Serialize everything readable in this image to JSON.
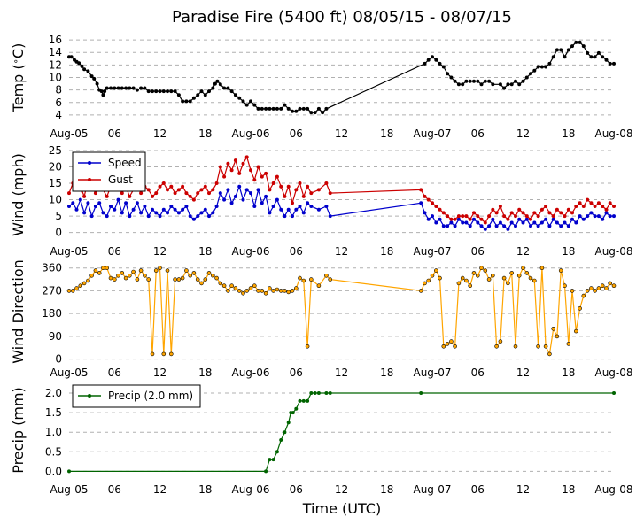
{
  "title": "Paradise Fire (5400 ft) 08/05/15 - 08/07/15",
  "xlabel": "Time (UTC)",
  "x_tick_labels": [
    "Aug-05",
    "06",
    "12",
    "18",
    "Aug-06",
    "06",
    "12",
    "18",
    "Aug-07",
    "06",
    "12",
    "18",
    "Aug-08"
  ],
  "x_range_hours": [
    0,
    72
  ],
  "chart_data": [
    {
      "type": "line",
      "id": "temp",
      "ylabel": "Temp (°C)",
      "ylabel_display": "Temp ($^\\circ$C)",
      "ylim": [
        3,
        17
      ],
      "yticks": [
        4,
        6,
        8,
        10,
        12,
        14,
        16
      ],
      "color": "#000000",
      "series": [
        {
          "name": "Temp",
          "x": [
            0,
            0.3,
            0.7,
            1,
            1.3,
            1.7,
            2,
            2.5,
            3,
            3.3,
            3.7,
            4,
            4.3,
            4.5,
            4.7,
            5,
            5.5,
            6,
            6.5,
            7,
            7.5,
            8,
            8.5,
            9,
            9.5,
            10,
            10.5,
            11,
            11.5,
            12,
            12.5,
            13,
            13.5,
            14,
            14.5,
            15,
            15.5,
            16,
            16.5,
            17,
            17.5,
            18,
            18.5,
            19,
            19.3,
            19.6,
            20,
            20.5,
            21,
            21.5,
            22,
            22.5,
            23,
            23.5,
            24,
            24.5,
            25,
            25.5,
            26,
            26.5,
            27,
            27.5,
            28,
            28.5,
            29,
            29.5,
            30,
            30.5,
            31,
            31.5,
            32,
            32.5,
            33,
            33.5,
            34,
            47,
            47.5,
            48,
            48.5,
            49,
            49.5,
            50,
            50.5,
            51,
            51.5,
            52,
            52.5,
            53,
            53.5,
            54,
            54.5,
            55,
            55.5,
            56,
            57,
            57.5,
            58,
            58.5,
            59,
            59.5,
            60,
            60.5,
            61,
            61.5,
            62,
            62.5,
            63,
            63.5,
            64,
            64.5,
            65,
            65.5,
            66,
            66.5,
            67,
            67.5,
            68,
            68.5,
            69,
            69.5,
            70,
            70.5,
            71,
            71.5,
            72
          ],
          "y": [
            13.3,
            13.3,
            12.8,
            12.5,
            12.3,
            11.8,
            11.3,
            11.0,
            10.2,
            9.8,
            9.0,
            8.0,
            7.8,
            7.2,
            7.8,
            8.3,
            8.3,
            8.3,
            8.3,
            8.3,
            8.3,
            8.3,
            8.3,
            8.0,
            8.3,
            8.3,
            7.8,
            7.8,
            7.8,
            7.8,
            7.8,
            7.8,
            7.8,
            7.8,
            7.2,
            6.2,
            6.2,
            6.2,
            6.7,
            7.2,
            7.8,
            7.2,
            7.8,
            8.3,
            9.0,
            9.4,
            8.9,
            8.3,
            8.3,
            7.8,
            7.2,
            6.7,
            6.2,
            5.6,
            6.2,
            5.6,
            5.0,
            5.0,
            5.0,
            5.0,
            5.0,
            5.0,
            5.0,
            5.6,
            5.0,
            4.6,
            4.6,
            5.0,
            5.0,
            5.0,
            4.4,
            4.4,
            5.0,
            4.4,
            5.0,
            12.2,
            12.8,
            13.3,
            12.8,
            12.2,
            11.7,
            10.6,
            10.0,
            9.4,
            8.9,
            8.9,
            9.4,
            9.4,
            9.4,
            9.4,
            8.9,
            9.4,
            9.4,
            8.9,
            8.9,
            8.3,
            8.9,
            8.9,
            9.4,
            8.9,
            9.4,
            10.0,
            10.6,
            11.1,
            11.7,
            11.7,
            11.7,
            12.2,
            13.3,
            14.4,
            14.4,
            13.3,
            14.4,
            15.0,
            15.6,
            15.6,
            15.0,
            13.9,
            13.3,
            13.3,
            13.9,
            13.3,
            12.8,
            12.2,
            12.2
          ]
        }
      ]
    },
    {
      "type": "line",
      "id": "wind",
      "ylabel": "Wind (mph)",
      "ylim": [
        -2,
        25
      ],
      "yticks": [
        0,
        5,
        10,
        15,
        20,
        25
      ],
      "legend": "upper-left",
      "series": [
        {
          "name": "Speed",
          "color": "#0000cc",
          "x": [
            0,
            0.5,
            1,
            1.5,
            2,
            2.5,
            3,
            3.5,
            4,
            4.5,
            5,
            5.5,
            6,
            6.5,
            7,
            7.5,
            8,
            8.5,
            9,
            9.5,
            10,
            10.5,
            11,
            11.5,
            12,
            12.5,
            13,
            13.5,
            14,
            14.5,
            15,
            15.5,
            16,
            16.5,
            17,
            17.5,
            18,
            18.5,
            19,
            19.5,
            20,
            20.5,
            21,
            21.5,
            22,
            22.5,
            23,
            23.5,
            24,
            24.5,
            25,
            25.5,
            26,
            26.5,
            27,
            27.5,
            28,
            28.5,
            29,
            29.5,
            30,
            30.5,
            31,
            31.5,
            32,
            33,
            34,
            34.5,
            46.5,
            47,
            47.5,
            48,
            48.5,
            49,
            49.5,
            50,
            50.5,
            51,
            51.5,
            52,
            52.5,
            53,
            53.5,
            54,
            54.5,
            55,
            55.5,
            56,
            56.5,
            57,
            57.5,
            58,
            58.5,
            59,
            59.5,
            60,
            60.5,
            61,
            61.5,
            62,
            62.5,
            63,
            63.5,
            64,
            64.5,
            65,
            65.5,
            66,
            66.5,
            67,
            67.5,
            68,
            68.5,
            69,
            69.5,
            70,
            70.5,
            71,
            71.5,
            72
          ],
          "y": [
            8,
            9,
            7,
            10,
            6,
            9,
            5,
            8,
            9,
            6,
            5,
            8,
            7,
            10,
            6,
            9,
            5,
            7,
            9,
            6,
            8,
            5,
            7,
            6,
            5,
            7,
            6,
            8,
            7,
            6,
            7,
            8,
            5,
            4,
            5,
            6,
            7,
            5,
            6,
            8,
            12,
            10,
            13,
            9,
            11,
            14,
            10,
            13,
            12,
            8,
            13,
            9,
            11,
            6,
            8,
            10,
            7,
            5,
            7,
            5,
            7,
            8,
            6,
            9,
            8,
            7,
            8,
            5,
            9,
            6,
            4,
            5,
            3,
            4,
            2,
            2,
            3,
            2,
            4,
            3,
            3,
            2,
            4,
            3,
            2,
            1,
            2,
            4,
            2,
            3,
            2,
            1,
            3,
            2,
            4,
            3,
            4,
            2,
            3,
            2,
            3,
            4,
            2,
            4,
            3,
            2,
            3,
            2,
            4,
            3,
            5,
            4,
            5,
            6,
            5,
            5,
            4,
            6,
            5,
            5
          ]
        },
        {
          "name": "Gust",
          "color": "#cc0000",
          "x": [
            0,
            0.5,
            1,
            1.5,
            2,
            2.5,
            3,
            3.5,
            4,
            4.5,
            5,
            5.5,
            6,
            6.5,
            7,
            7.5,
            8,
            8.5,
            9,
            9.5,
            10,
            10.5,
            11,
            11.5,
            12,
            12.5,
            13,
            13.5,
            14,
            14.5,
            15,
            15.5,
            16,
            16.5,
            17,
            17.5,
            18,
            18.5,
            19,
            19.5,
            20,
            20.5,
            21,
            21.5,
            22,
            22.5,
            23,
            23.5,
            24,
            24.5,
            25,
            25.5,
            26,
            26.5,
            27,
            27.5,
            28,
            28.5,
            29,
            29.5,
            30,
            30.5,
            31,
            31.5,
            32,
            33,
            34,
            34.5,
            46.5,
            47,
            47.5,
            48,
            48.5,
            49,
            49.5,
            50,
            50.5,
            51,
            51.5,
            52,
            52.5,
            53,
            53.5,
            54,
            54.5,
            55,
            55.5,
            56,
            56.5,
            57,
            57.5,
            58,
            58.5,
            59,
            59.5,
            60,
            60.5,
            61,
            61.5,
            62,
            62.5,
            63,
            63.5,
            64,
            64.5,
            65,
            65.5,
            66,
            66.5,
            67,
            67.5,
            68,
            68.5,
            69,
            69.5,
            70,
            70.5,
            71,
            71.5,
            72
          ],
          "y": [
            12,
            15,
            13,
            14,
            11,
            16,
            14,
            12,
            15,
            13,
            11,
            14,
            13,
            15,
            12,
            14,
            11,
            13,
            15,
            12,
            14,
            13,
            11,
            12,
            14,
            15,
            13,
            14,
            12,
            13,
            14,
            12,
            11,
            10,
            12,
            13,
            14,
            12,
            13,
            15,
            20,
            17,
            21,
            19,
            22,
            18,
            21,
            23,
            19,
            16,
            20,
            17,
            18,
            13,
            15,
            17,
            14,
            11,
            14,
            9,
            13,
            15,
            11,
            14,
            12,
            13,
            15,
            12,
            13,
            11,
            10,
            9,
            8,
            7,
            6,
            5,
            4,
            4,
            5,
            5,
            5,
            4,
            6,
            5,
            4,
            3,
            5,
            7,
            6,
            8,
            5,
            4,
            6,
            5,
            7,
            6,
            5,
            4,
            6,
            5,
            7,
            8,
            6,
            5,
            7,
            6,
            5,
            7,
            6,
            8,
            9,
            8,
            10,
            9,
            8,
            9,
            8,
            7,
            9,
            8
          ]
        }
      ]
    },
    {
      "type": "scatter-line",
      "id": "wdir",
      "ylabel": "Wind Direction",
      "ylim": [
        -5,
        380
      ],
      "yticks": [
        0,
        90,
        180,
        270,
        360
      ],
      "color": "#ffa500",
      "series": [
        {
          "name": "Direction",
          "x": [
            0,
            0.5,
            1,
            1.5,
            2,
            2.5,
            3,
            3.5,
            4,
            4.5,
            5,
            5.5,
            6,
            6.5,
            7,
            7.5,
            8,
            8.5,
            9,
            9.5,
            10,
            10.5,
            11,
            11.5,
            12,
            12.5,
            13,
            13.5,
            14,
            14.5,
            15,
            15.5,
            16,
            16.5,
            17,
            17.5,
            18,
            18.5,
            19,
            19.5,
            20,
            20.5,
            21,
            21.5,
            22,
            22.5,
            23,
            23.5,
            24,
            24.5,
            25,
            25.5,
            26,
            26.5,
            27,
            27.5,
            28,
            28.5,
            29,
            29.5,
            30,
            30.5,
            31,
            31.5,
            32,
            33,
            34,
            34.5,
            46.5,
            47,
            47.5,
            48,
            48.5,
            49,
            49.5,
            50,
            50.5,
            51,
            51.5,
            52,
            52.5,
            53,
            53.5,
            54,
            54.5,
            55,
            55.5,
            56,
            56.5,
            57,
            57.5,
            58,
            58.5,
            59,
            59.5,
            60,
            60.5,
            61,
            61.5,
            62,
            62.5,
            63,
            63.5,
            64,
            64.5,
            65,
            65.5,
            66,
            66.5,
            67,
            67.5,
            68,
            68.5,
            69,
            69.5,
            70,
            70.5,
            71,
            71.5,
            72
          ],
          "y": [
            270,
            270,
            280,
            290,
            300,
            310,
            330,
            350,
            340,
            360,
            360,
            320,
            315,
            330,
            340,
            320,
            330,
            345,
            315,
            350,
            330,
            315,
            20,
            350,
            360,
            20,
            350,
            20,
            315,
            315,
            320,
            350,
            330,
            340,
            315,
            300,
            315,
            340,
            330,
            320,
            300,
            290,
            270,
            290,
            280,
            270,
            260,
            270,
            280,
            290,
            270,
            270,
            260,
            280,
            270,
            275,
            270,
            270,
            265,
            270,
            280,
            320,
            310,
            50,
            315,
            290,
            330,
            315,
            270,
            300,
            310,
            330,
            350,
            320,
            50,
            60,
            70,
            50,
            300,
            320,
            310,
            290,
            340,
            330,
            360,
            350,
            315,
            330,
            50,
            70,
            320,
            300,
            340,
            50,
            330,
            360,
            340,
            320,
            310,
            50,
            360,
            50,
            20,
            120,
            90,
            350,
            290,
            60,
            270,
            110,
            200,
            250,
            270,
            280,
            270,
            280,
            290,
            280,
            300,
            290
          ]
        }
      ]
    },
    {
      "type": "line",
      "id": "precip",
      "ylabel": "Precip (mm)",
      "ylim": [
        -0.15,
        2.25
      ],
      "yticks": [
        0.0,
        0.5,
        1.0,
        1.5,
        2.0
      ],
      "yticklabels": [
        "0.0",
        "0.5",
        "1.0",
        "1.5",
        "2.0"
      ],
      "legend": "upper-left",
      "series": [
        {
          "name": "Precip (2.0 mm)",
          "color": "#006400",
          "x": [
            0,
            26,
            26.5,
            27,
            27.5,
            28,
            28.5,
            29,
            29.3,
            29.6,
            30,
            30.5,
            31,
            31.5,
            32,
            32.5,
            33,
            34,
            34.5,
            46.5,
            72
          ],
          "y": [
            0,
            0,
            0.3,
            0.3,
            0.5,
            0.8,
            1.0,
            1.25,
            1.5,
            1.5,
            1.6,
            1.8,
            1.8,
            1.8,
            2.0,
            2.0,
            2.0,
            2.0,
            2.0,
            2.0,
            2.0
          ]
        }
      ]
    }
  ]
}
